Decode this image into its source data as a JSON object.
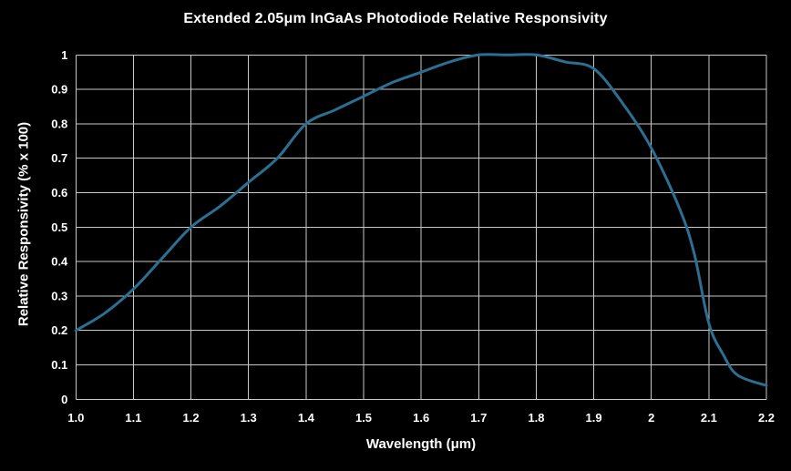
{
  "colors": {
    "background": "#000000",
    "grid": "#c8c8c8",
    "text": "#ffffff",
    "curve": "#2b6f92"
  },
  "chart_data": {
    "type": "line",
    "title": "Extended 2.05μm InGaAs Photodiode Relative Responsivity",
    "xlabel": "Wavelength (μm)",
    "ylabel": "Relative Responsivity (% x 100)",
    "xlim": [
      1.0,
      2.2
    ],
    "ylim": [
      0,
      1
    ],
    "grid": true,
    "legend_position": "none",
    "x_ticks": [
      "1.0",
      "1.1",
      "1.2",
      "1.3",
      "1.4",
      "1.5",
      "1.6",
      "1.7",
      "1.8",
      "1.9",
      "2",
      "2.1",
      "2.2"
    ],
    "x_tick_values": [
      1.0,
      1.1,
      1.2,
      1.3,
      1.4,
      1.5,
      1.6,
      1.7,
      1.8,
      1.9,
      2.0,
      2.1,
      2.2
    ],
    "y_ticks": [
      "0",
      "0.1",
      "0.2",
      "0.3",
      "0.4",
      "0.5",
      "0.6",
      "0.7",
      "0.8",
      "0.9",
      "1"
    ],
    "y_tick_values": [
      0,
      0.1,
      0.2,
      0.3,
      0.4,
      0.5,
      0.6,
      0.7,
      0.8,
      0.9,
      1.0
    ],
    "series": [
      {
        "name": "Relative Responsivity",
        "color": "#2b6f92",
        "x": [
          1.0,
          1.05,
          1.1,
          1.15,
          1.2,
          1.25,
          1.3,
          1.35,
          1.4,
          1.45,
          1.5,
          1.55,
          1.6,
          1.65,
          1.7,
          1.75,
          1.8,
          1.85,
          1.9,
          1.95,
          2.0,
          2.05,
          2.075,
          2.1,
          2.125,
          2.15,
          2.2
        ],
        "y": [
          0.2,
          0.25,
          0.32,
          0.41,
          0.5,
          0.56,
          0.63,
          0.7,
          0.8,
          0.84,
          0.88,
          0.92,
          0.95,
          0.98,
          1.0,
          1.0,
          1.0,
          0.98,
          0.96,
          0.86,
          0.73,
          0.55,
          0.42,
          0.22,
          0.13,
          0.07,
          0.04
        ]
      }
    ]
  }
}
